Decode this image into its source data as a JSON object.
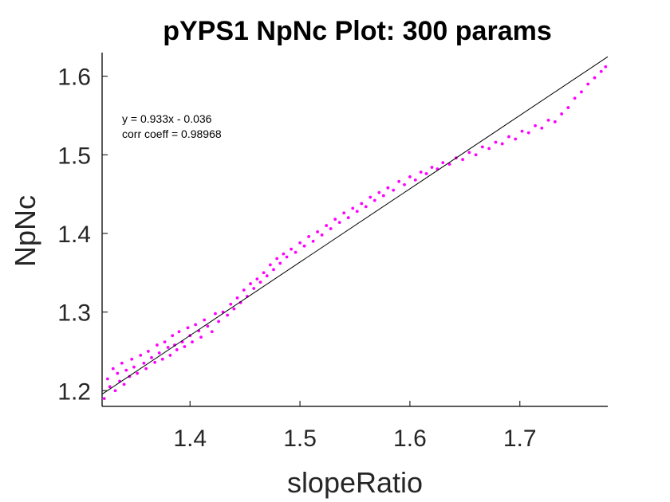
{
  "chart_data": {
    "type": "scatter",
    "title": "pYPS1 NpNc Plot: 300 params",
    "xlabel": "slopeRatio",
    "ylabel": "NpNc",
    "xlim": [
      1.32,
      1.78
    ],
    "ylim": [
      1.18,
      1.63
    ],
    "xticks": [
      1.4,
      1.5,
      1.6,
      1.7
    ],
    "yticks": [
      1.2,
      1.3,
      1.4,
      1.5,
      1.6
    ],
    "xtick_labels": [
      "1.4",
      "1.5",
      "1.6",
      "1.7"
    ],
    "ytick_labels": [
      "1.2",
      "1.3",
      "1.4",
      "1.5",
      "1.6"
    ],
    "grid": false,
    "marker_color": "#ff00ff",
    "fit_line_color": "#000000",
    "fit": {
      "slope": 0.933,
      "intercept": -0.036
    },
    "annotations": [
      "y = 0.933x - 0.036",
      "corr coeff = 0.98968"
    ],
    "series": [
      {
        "x": [
          1.322,
          1.325,
          1.327,
          1.33,
          1.332,
          1.334,
          1.336,
          1.338,
          1.34,
          1.342,
          1.345,
          1.347,
          1.349,
          1.352,
          1.355,
          1.358,
          1.36,
          1.362,
          1.365,
          1.368,
          1.37,
          1.372,
          1.375,
          1.377,
          1.38,
          1.382,
          1.384,
          1.386,
          1.388,
          1.39,
          1.393,
          1.395,
          1.398,
          1.4,
          1.402,
          1.405,
          1.408,
          1.41,
          1.413,
          1.416,
          1.42,
          1.423,
          1.426,
          1.43,
          1.434,
          1.437,
          1.44,
          1.443,
          1.446,
          1.449,
          1.452,
          1.455,
          1.458,
          1.461,
          1.464,
          1.467,
          1.47,
          1.473,
          1.476,
          1.479,
          1.482,
          1.485,
          1.488,
          1.492,
          1.496,
          1.5,
          1.504,
          1.508,
          1.512,
          1.516,
          1.52,
          1.524,
          1.528,
          1.532,
          1.536,
          1.54,
          1.544,
          1.548,
          1.552,
          1.556,
          1.56,
          1.564,
          1.568,
          1.572,
          1.576,
          1.58,
          1.585,
          1.59,
          1.595,
          1.6,
          1.605,
          1.61,
          1.615,
          1.62,
          1.625,
          1.63,
          1.636,
          1.642,
          1.648,
          1.654,
          1.66,
          1.666,
          1.672,
          1.678,
          1.684,
          1.69,
          1.696,
          1.702,
          1.708,
          1.714,
          1.72,
          1.726,
          1.732,
          1.738,
          1.744,
          1.75,
          1.756,
          1.762,
          1.768,
          1.774,
          1.778
        ],
        "y": [
          1.19,
          1.215,
          1.205,
          1.228,
          1.2,
          1.222,
          1.212,
          1.235,
          1.208,
          1.226,
          1.218,
          1.24,
          1.23,
          1.222,
          1.245,
          1.235,
          1.228,
          1.25,
          1.242,
          1.236,
          1.258,
          1.248,
          1.24,
          1.262,
          1.255,
          1.245,
          1.27,
          1.258,
          1.252,
          1.275,
          1.262,
          1.256,
          1.28,
          1.27,
          1.262,
          1.284,
          1.276,
          1.268,
          1.29,
          1.282,
          1.275,
          1.298,
          1.288,
          1.3,
          1.296,
          1.31,
          1.304,
          1.318,
          1.312,
          1.328,
          1.32,
          1.336,
          1.33,
          1.342,
          1.338,
          1.35,
          1.346,
          1.36,
          1.354,
          1.368,
          1.362,
          1.374,
          1.37,
          1.38,
          1.376,
          1.388,
          1.384,
          1.396,
          1.39,
          1.402,
          1.398,
          1.41,
          1.406,
          1.418,
          1.414,
          1.426,
          1.42,
          1.432,
          1.428,
          1.438,
          1.434,
          1.446,
          1.442,
          1.452,
          1.448,
          1.458,
          1.455,
          1.466,
          1.462,
          1.472,
          1.468,
          1.478,
          1.476,
          1.484,
          1.482,
          1.49,
          1.488,
          1.496,
          1.494,
          1.503,
          1.5,
          1.51,
          1.508,
          1.516,
          1.514,
          1.523,
          1.52,
          1.53,
          1.528,
          1.537,
          1.534,
          1.544,
          1.542,
          1.552,
          1.56,
          1.572,
          1.58,
          1.59,
          1.598,
          1.606,
          1.612
        ]
      }
    ]
  }
}
